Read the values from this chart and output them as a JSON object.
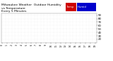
{
  "title": "Milwaukee Weather  Outdoor Humidity\nvs Temperature\nEvery 5 Minutes",
  "legend_temp": "Temp",
  "legend_humid": "Humid",
  "temp_color": "#dd0000",
  "humid_color": "#0000cc",
  "legend_temp_bg": "#cc0000",
  "legend_humid_bg": "#0000cc",
  "background_color": "#ffffff",
  "plot_bg_color": "#ffffff",
  "grid_color": "#cccccc",
  "ylim": [
    10,
    95
  ],
  "yticks": [
    20,
    30,
    40,
    50,
    60,
    70,
    80,
    90
  ],
  "title_fontsize": 3.2,
  "tick_fontsize": 2.8,
  "legend_fontsize": 2.8
}
